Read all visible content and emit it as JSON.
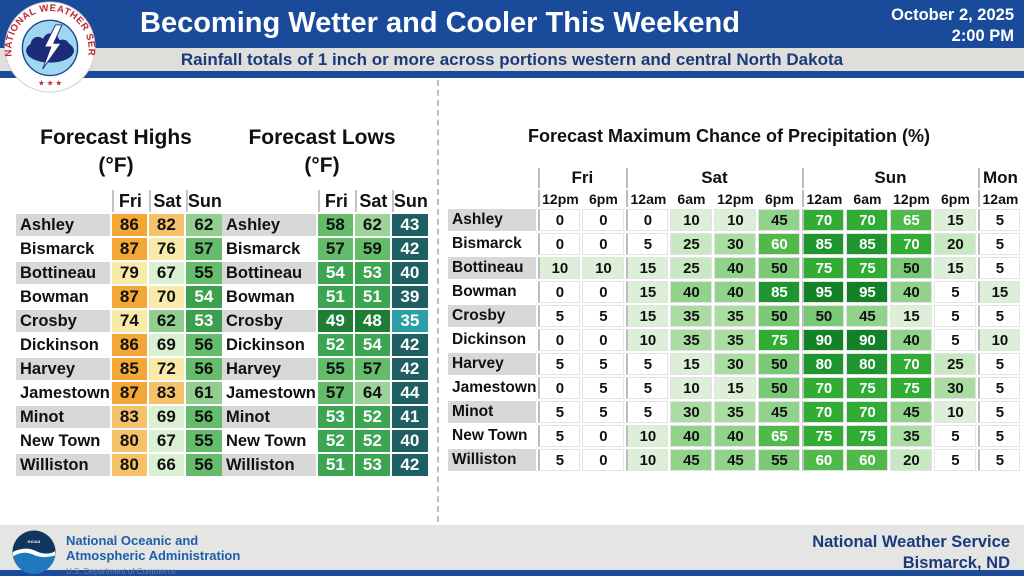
{
  "header": {
    "title": "Becoming Wetter and Cooler This Weekend",
    "subtitle": "Rainfall totals of 1 inch or more across portions western and central North Dakota",
    "date_line1": "October 2, 2025",
    "date_line2": "2:00 PM",
    "banner_color": "#1A4B9B",
    "subtitle_text_color": "#1A3A7D"
  },
  "panels": {
    "highs": {
      "title_line1": "Forecast Highs",
      "title_line2": "(°F)"
    },
    "lows": {
      "title_line1": "Forecast Lows",
      "title_line2": "(°F)"
    },
    "precip": {
      "title": "Forecast Maximum Chance of Precipitation (%)"
    }
  },
  "footer": {
    "noaa_line1": "National Oceanic and",
    "noaa_line2": "Atmospheric Administration",
    "noaa_line3": "U.S. Department of Commerce",
    "right_line1": "National Weather Service",
    "right_line2": "Bismarck, ND"
  },
  "scales": {
    "highs": [
      {
        "min": 84,
        "max": 110,
        "bg": "#F4A636",
        "fg": "#111111"
      },
      {
        "min": 80,
        "max": 83,
        "bg": "#F5C169",
        "fg": "#111111"
      },
      {
        "min": 70,
        "max": 79,
        "bg": "#F9EAA9",
        "fg": "#111111"
      },
      {
        "min": 64,
        "max": 69,
        "bg": "#D9F0D2",
        "fg": "#111111"
      },
      {
        "min": 58,
        "max": 63,
        "bg": "#92CE90",
        "fg": "#111111"
      },
      {
        "min": 55,
        "max": 57,
        "bg": "#65BC6C",
        "fg": "#111111"
      },
      {
        "min": 45,
        "max": 54,
        "bg": "#3BA14F",
        "fg": "#ffffff"
      }
    ],
    "lows": [
      {
        "min": 62,
        "max": 70,
        "bg": "#9CD399",
        "fg": "#111111"
      },
      {
        "min": 55,
        "max": 61,
        "bg": "#64BC6B",
        "fg": "#111111"
      },
      {
        "min": 50,
        "max": 54,
        "bg": "#3BA552",
        "fg": "#ffffff"
      },
      {
        "min": 45,
        "max": 49,
        "bg": "#1F7E35",
        "fg": "#ffffff"
      },
      {
        "min": 37,
        "max": 44,
        "bg": "#1E5F64",
        "fg": "#ffffff"
      },
      {
        "min": 25,
        "max": 36,
        "bg": "#2C9FA6",
        "fg": "#ffffff"
      }
    ],
    "precip": [
      {
        "min": 0,
        "max": 5,
        "bg": "#FFFFFF",
        "fg": "#111111"
      },
      {
        "min": 6,
        "max": 15,
        "bg": "#DCF0D8",
        "fg": "#111111"
      },
      {
        "min": 16,
        "max": 25,
        "bg": "#C8E8C1",
        "fg": "#111111"
      },
      {
        "min": 26,
        "max": 35,
        "bg": "#ABDDA2",
        "fg": "#111111"
      },
      {
        "min": 36,
        "max": 45,
        "bg": "#92D38B",
        "fg": "#111111"
      },
      {
        "min": 46,
        "max": 55,
        "bg": "#7AC976",
        "fg": "#111111"
      },
      {
        "min": 56,
        "max": 65,
        "bg": "#50B94A",
        "fg": "#ffffff"
      },
      {
        "min": 66,
        "max": 75,
        "bg": "#30AC34",
        "fg": "#ffffff"
      },
      {
        "min": 76,
        "max": 85,
        "bg": "#1F9530",
        "fg": "#ffffff"
      },
      {
        "min": 86,
        "max": 100,
        "bg": "#128128",
        "fg": "#ffffff"
      }
    ]
  },
  "chart_data": [
    {
      "type": "table",
      "name": "forecast_highs_f",
      "title": "Forecast Highs (°F)",
      "columns": [
        "Fri",
        "Sat",
        "Sun"
      ],
      "rows": [
        {
          "city": "Ashley",
          "values": [
            86,
            82,
            62
          ]
        },
        {
          "city": "Bismarck",
          "values": [
            87,
            76,
            57
          ]
        },
        {
          "city": "Bottineau",
          "values": [
            79,
            67,
            55
          ]
        },
        {
          "city": "Bowman",
          "values": [
            87,
            70,
            54
          ]
        },
        {
          "city": "Crosby",
          "values": [
            74,
            62,
            53
          ]
        },
        {
          "city": "Dickinson",
          "values": [
            86,
            69,
            56
          ]
        },
        {
          "city": "Harvey",
          "values": [
            85,
            72,
            56
          ]
        },
        {
          "city": "Jamestown",
          "values": [
            87,
            83,
            61
          ]
        },
        {
          "city": "Minot",
          "values": [
            83,
            69,
            56
          ]
        },
        {
          "city": "New Town",
          "values": [
            80,
            67,
            55
          ]
        },
        {
          "city": "Williston",
          "values": [
            80,
            66,
            56
          ]
        }
      ]
    },
    {
      "type": "table",
      "name": "forecast_lows_f",
      "title": "Forecast Lows (°F)",
      "columns": [
        "Fri",
        "Sat",
        "Sun"
      ],
      "rows": [
        {
          "city": "Ashley",
          "values": [
            58,
            62,
            43
          ]
        },
        {
          "city": "Bismarck",
          "values": [
            57,
            59,
            42
          ]
        },
        {
          "city": "Bottineau",
          "values": [
            54,
            53,
            40
          ]
        },
        {
          "city": "Bowman",
          "values": [
            51,
            51,
            39
          ]
        },
        {
          "city": "Crosby",
          "values": [
            49,
            48,
            35
          ]
        },
        {
          "city": "Dickinson",
          "values": [
            52,
            54,
            42
          ]
        },
        {
          "city": "Harvey",
          "values": [
            55,
            57,
            42
          ]
        },
        {
          "city": "Jamestown",
          "values": [
            57,
            64,
            44
          ]
        },
        {
          "city": "Minot",
          "values": [
            53,
            52,
            41
          ]
        },
        {
          "city": "New Town",
          "values": [
            52,
            52,
            40
          ]
        },
        {
          "city": "Williston",
          "values": [
            51,
            53,
            42
          ]
        }
      ]
    },
    {
      "type": "table",
      "name": "forecast_max_chance_of_precipitation_pct",
      "title": "Forecast Maximum Chance of Precipitation (%)",
      "column_groups": [
        {
          "label": "Fri",
          "times": [
            "12pm",
            "6pm"
          ]
        },
        {
          "label": "Sat",
          "times": [
            "12am",
            "6am",
            "12pm",
            "6pm"
          ]
        },
        {
          "label": "Sun",
          "times": [
            "12am",
            "6am",
            "12pm",
            "6pm"
          ]
        },
        {
          "label": "Mon",
          "times": [
            "12am"
          ]
        }
      ],
      "rows": [
        {
          "city": "Ashley",
          "values": [
            0,
            0,
            0,
            10,
            10,
            45,
            70,
            70,
            65,
            15,
            5
          ]
        },
        {
          "city": "Bismarck",
          "values": [
            0,
            0,
            5,
            25,
            30,
            60,
            85,
            85,
            70,
            20,
            5
          ]
        },
        {
          "city": "Bottineau",
          "values": [
            10,
            10,
            15,
            25,
            40,
            50,
            75,
            75,
            50,
            15,
            5
          ]
        },
        {
          "city": "Bowman",
          "values": [
            0,
            0,
            15,
            40,
            40,
            85,
            95,
            95,
            40,
            5,
            15
          ]
        },
        {
          "city": "Crosby",
          "values": [
            5,
            5,
            15,
            35,
            35,
            50,
            50,
            45,
            15,
            5,
            5
          ]
        },
        {
          "city": "Dickinson",
          "values": [
            0,
            0,
            10,
            35,
            35,
            75,
            90,
            90,
            40,
            5,
            10
          ]
        },
        {
          "city": "Harvey",
          "values": [
            5,
            5,
            5,
            15,
            30,
            50,
            80,
            80,
            70,
            25,
            5
          ]
        },
        {
          "city": "Jamestown",
          "values": [
            0,
            5,
            5,
            10,
            15,
            50,
            70,
            75,
            75,
            30,
            5
          ]
        },
        {
          "city": "Minot",
          "values": [
            5,
            5,
            5,
            30,
            35,
            45,
            70,
            70,
            45,
            10,
            5
          ]
        },
        {
          "city": "New Town",
          "values": [
            5,
            0,
            10,
            40,
            40,
            65,
            75,
            75,
            35,
            5,
            5
          ]
        },
        {
          "city": "Williston",
          "values": [
            5,
            0,
            10,
            45,
            45,
            55,
            60,
            60,
            20,
            5,
            5
          ]
        }
      ]
    }
  ]
}
